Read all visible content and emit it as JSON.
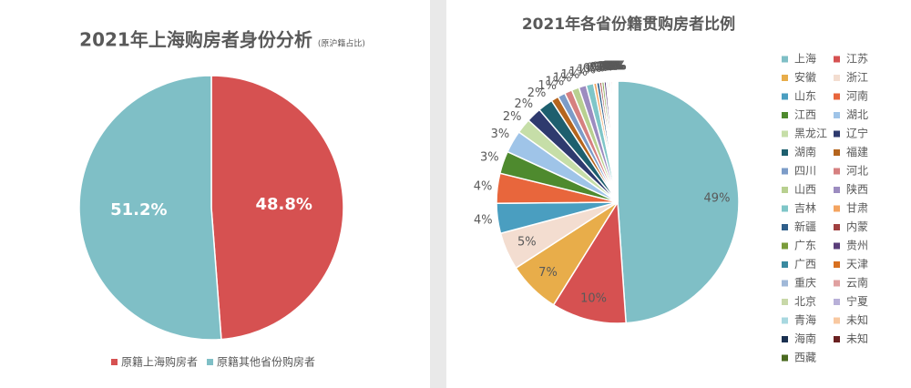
{
  "chart_data": [
    {
      "type": "pie",
      "title": "2021年上海购房者身份分析",
      "subtitle": "(原沪籍占比)",
      "categories": [
        "原籍上海购房者",
        "原籍其他省份购房者"
      ],
      "values": [
        48.8,
        51.2
      ],
      "value_labels": [
        "48.8%",
        "51.2%"
      ],
      "colors": [
        "#d65151",
        "#7fbfc6"
      ]
    },
    {
      "type": "pie",
      "title": "2021年各省份籍贯购房者比例",
      "categories": [
        "上海",
        "江苏",
        "安徽",
        "浙江",
        "山东",
        "河南",
        "江西",
        "湖北",
        "黑龙江",
        "辽宁",
        "湖南",
        "福建",
        "四川",
        "河北",
        "山西",
        "陕西",
        "吉林",
        "甘肃",
        "新疆",
        "内蒙",
        "广东",
        "贵州",
        "广西",
        "天津",
        "重庆",
        "云南",
        "北京",
        "宁夏",
        "青海",
        "未知",
        "海南",
        "未知",
        "西藏"
      ],
      "values": [
        49,
        10,
        7,
        5,
        4,
        4,
        3,
        3,
        2,
        2,
        2,
        1,
        1,
        1,
        1,
        1,
        1,
        0.4,
        0.4,
        0.3,
        0.3,
        0.3,
        0.2,
        0.2,
        0.2,
        0.2,
        0.1,
        0.1,
        0.1,
        0.1,
        0.1,
        0.1,
        0.1
      ],
      "value_labels": [
        "49%",
        "10%",
        "7%",
        "5%",
        "4%",
        "4%",
        "3%",
        "3%",
        "2%",
        "2%",
        "2%",
        "1%",
        "1%",
        "1%",
        "1%",
        "1%",
        "1%",
        "0%",
        "0%",
        "0%",
        "0%",
        "0%",
        "0%",
        "0%",
        "0%",
        "0%",
        "0%",
        "0%",
        "0%",
        "0%",
        "0%",
        "0%",
        "0%"
      ],
      "colors": [
        "#7fbfc6",
        "#d65151",
        "#e8ad4a",
        "#f3ddd0",
        "#4a9ec0",
        "#e8663c",
        "#4e8a2e",
        "#9fc4e8",
        "#c6dea8",
        "#2e3a6e",
        "#1e5f6e",
        "#b5651d",
        "#7c9cc8",
        "#d68080",
        "#b8d090",
        "#9c8cc0",
        "#7fc6c8",
        "#f4a460",
        "#2f5f8a",
        "#a04040",
        "#7a9c3a",
        "#5a3e7a",
        "#3a8aa0",
        "#d87020",
        "#a0b8d8",
        "#e0a0a0",
        "#c8d8a8",
        "#b8b0d8",
        "#a8d8e0",
        "#f8c8a0",
        "#1a3050",
        "#6a2020",
        "#4a6a20"
      ]
    }
  ]
}
